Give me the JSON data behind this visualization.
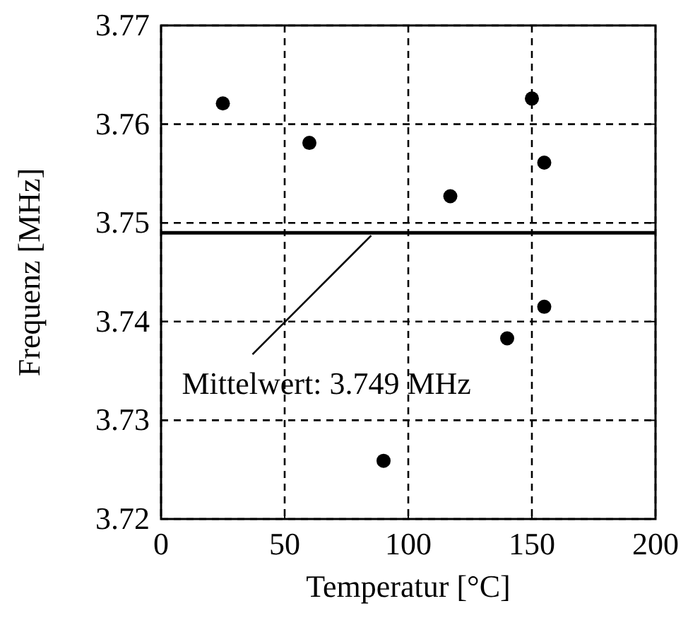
{
  "chart_data": {
    "type": "scatter",
    "xlabel": "Temperatur [°C]",
    "ylabel": "Frequenz [MHz]",
    "x": [
      25,
      60,
      117,
      150,
      155,
      155,
      140,
      90
    ],
    "values": [
      3.7621,
      3.7581,
      3.7527,
      3.7626,
      3.7561,
      3.7415,
      3.7383,
      3.7259
    ],
    "color": "#000000",
    "marker": "circle",
    "xlim": [
      0,
      200
    ],
    "xticks": [
      0,
      50,
      100,
      150,
      200
    ],
    "ylim": [
      3.72,
      3.77
    ],
    "yticks": [
      {
        "value": 3.72,
        "label": "3.72"
      },
      {
        "value": 3.73,
        "label": "3.73"
      },
      {
        "value": 3.74,
        "label": "3.74"
      },
      {
        "value": 3.75,
        "label": "3.75"
      },
      {
        "value": 3.76,
        "label": "3.76"
      },
      {
        "value": 3.77,
        "label": "3.77"
      }
    ],
    "grid": true,
    "ref_lines": [
      {
        "axis": "y",
        "value": 3.749,
        "color": "#000000",
        "line_style": "solid"
      }
    ],
    "annotations": [
      {
        "text": "Mittelwert: 3.749 MHz",
        "x": 85,
        "y": 3.749
      }
    ]
  }
}
